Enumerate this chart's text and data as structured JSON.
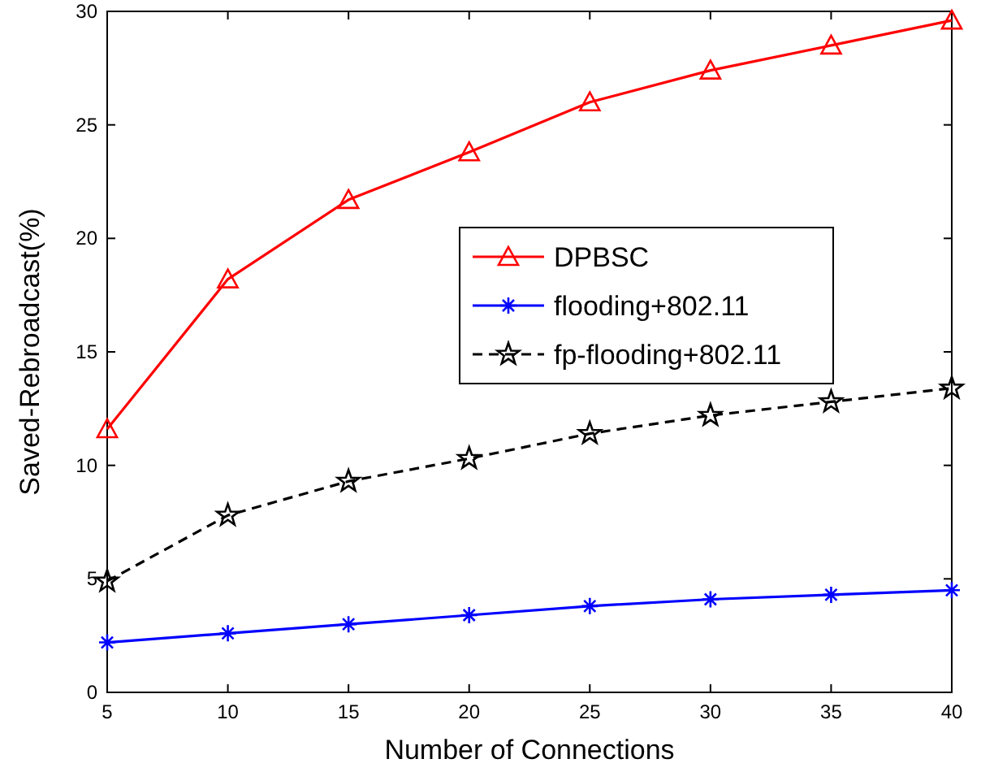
{
  "chart_data": {
    "type": "line",
    "xlabel": "Number of Connections",
    "ylabel": "Saved-Rebroadcast(%)",
    "x": [
      5,
      10,
      15,
      20,
      25,
      30,
      35,
      40
    ],
    "series": [
      {
        "name": "DPBSC",
        "color": "#ff0000",
        "marker": "triangle",
        "line_style": "solid",
        "values": [
          11.6,
          18.2,
          21.7,
          23.8,
          26.0,
          27.4,
          28.5,
          29.6
        ]
      },
      {
        "name": "flooding+802.11",
        "color": "#0000ff",
        "marker": "cross",
        "line_style": "solid",
        "values": [
          2.2,
          2.6,
          3.0,
          3.4,
          3.8,
          4.1,
          4.3,
          4.5
        ]
      },
      {
        "name": "fp-flooding+802.11",
        "color": "#000000",
        "marker": "star",
        "line_style": "dashed",
        "values": [
          4.9,
          7.8,
          9.3,
          10.3,
          11.4,
          12.2,
          12.8,
          13.4
        ]
      }
    ],
    "xlim": [
      5,
      40
    ],
    "xticks": [
      5,
      10,
      15,
      20,
      25,
      30,
      35,
      40
    ],
    "ylim": [
      0,
      30
    ],
    "yticks": [
      0,
      5,
      10,
      15,
      20,
      25,
      30
    ],
    "grid": false,
    "legend": "right"
  }
}
